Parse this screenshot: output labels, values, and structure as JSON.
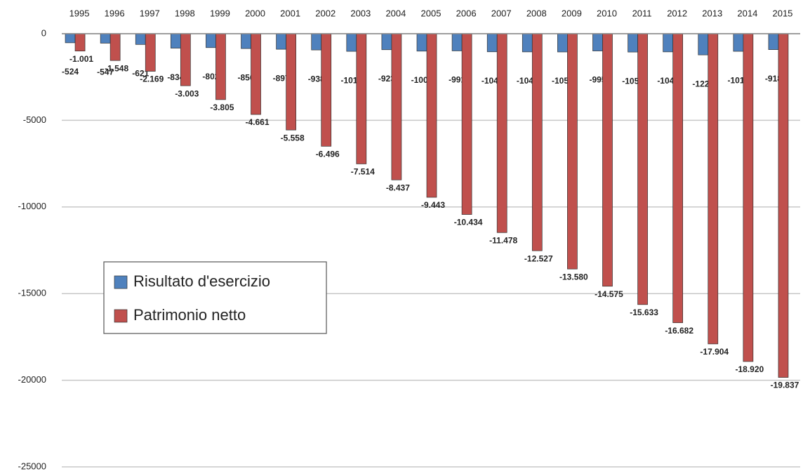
{
  "chart_data": {
    "type": "bar",
    "categories": [
      "1995",
      "1996",
      "1997",
      "1998",
      "1999",
      "2000",
      "2001",
      "2002",
      "2003",
      "2004",
      "2005",
      "2006",
      "2007",
      "2008",
      "2009",
      "2010",
      "2011",
      "2012",
      "2013",
      "2014",
      "2015"
    ],
    "series": [
      {
        "name": "Risultato d'esercizio",
        "color": "#4f81bd",
        "values": [
          -524,
          -547,
          -621,
          -834,
          -802,
          -856,
          -897,
          -938,
          -1018,
          -923,
          -1006,
          -991,
          -1044,
          -1049,
          -1053,
          -995,
          -1058,
          -1048,
          -1222,
          -1017,
          -918
        ]
      },
      {
        "name": "Patrimonio netto",
        "color": "#c0504d",
        "values": [
          -1001,
          -1548,
          -2169,
          -3003,
          -3805,
          -4661,
          -5558,
          -6496,
          -7514,
          -8437,
          -9443,
          -10434,
          -11478,
          -12527,
          -13580,
          -14575,
          -15633,
          -16682,
          -17904,
          -18920,
          -19837
        ],
        "value_labels": [
          "-1.001",
          "-1.548",
          "-2.169",
          "-3.003",
          "-3.805",
          "-4.661",
          "-5.558",
          "-6.496",
          "-7.514",
          "-8.437",
          "-9.443",
          "-10.434",
          "-11.478",
          "-12.527",
          "-13.580",
          "-14.575",
          "-15.633",
          "-16.682",
          "-17.904",
          "-18.920",
          "-19.837"
        ]
      }
    ],
    "ylim": [
      -25000,
      0
    ],
    "yticks": [
      0,
      -5000,
      -10000,
      -15000,
      -20000,
      -25000
    ],
    "grid": true,
    "legend": "left"
  }
}
